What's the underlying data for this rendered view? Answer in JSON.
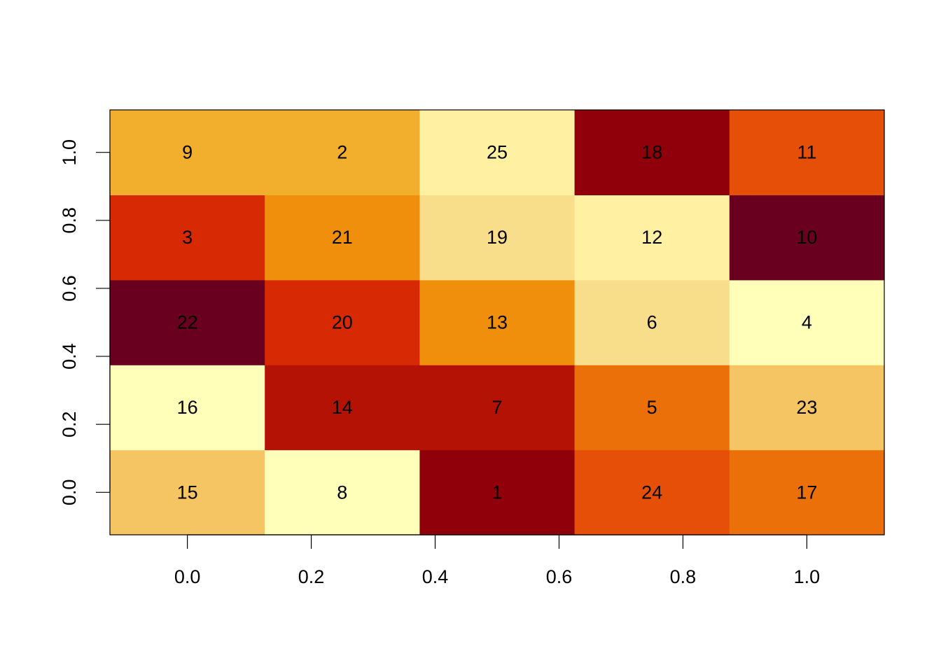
{
  "chart_data": {
    "type": "heatmap",
    "title": "",
    "xlabel": "",
    "ylabel": "",
    "x_ticks": [
      "0.0",
      "0.2",
      "0.4",
      "0.6",
      "0.8",
      "1.0"
    ],
    "y_ticks": [
      "0.0",
      "0.2",
      "0.4",
      "0.6",
      "0.8",
      "1.0"
    ],
    "xlim": [
      -0.125,
      1.125
    ],
    "ylim": [
      -0.125,
      1.125
    ],
    "x_centers": [
      0.0,
      0.25,
      0.5,
      0.75,
      1.0
    ],
    "y_centers": [
      0.0,
      0.25,
      0.5,
      0.75,
      1.0
    ],
    "rows_bottom_to_top": [
      [
        15,
        8,
        1,
        24,
        17
      ],
      [
        16,
        14,
        7,
        5,
        23
      ],
      [
        22,
        20,
        13,
        6,
        4
      ],
      [
        3,
        21,
        19,
        12,
        10
      ],
      [
        9,
        2,
        25,
        18,
        11
      ]
    ],
    "cell_colors_bottom_to_top": [
      [
        "#F4C562",
        "#FFFFBA",
        "#8F000A",
        "#E64F08",
        "#EC700A"
      ],
      [
        "#FFFFBA",
        "#B31205",
        "#B31205",
        "#EC700A",
        "#F4C562"
      ],
      [
        "#690020",
        "#D72904",
        "#EF8F0B",
        "#F8DD8A",
        "#FFFFBA"
      ],
      [
        "#D72904",
        "#EF8F0B",
        "#F8DD8A",
        "#FFF1A1",
        "#690020"
      ],
      [
        "#F2AE2D",
        "#F2AE2D",
        "#FFF1A1",
        "#8F000A",
        "#E64F08"
      ]
    ],
    "grid": false,
    "legend": "none"
  }
}
